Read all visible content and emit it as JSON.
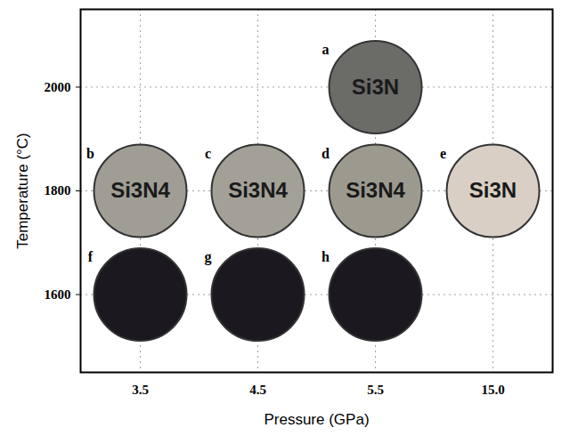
{
  "chart_data": {
    "type": "scatter",
    "x_label": "Pressure (GPa)",
    "y_label": "Temperature (°C)",
    "categories": [
      "3.5",
      "4.5",
      "5.5",
      "15.0"
    ],
    "ylim": [
      1450,
      2150
    ],
    "yticks": [
      1600,
      1800,
      2000
    ],
    "grid": true,
    "points": [
      {
        "label": "a",
        "x": "5.5",
        "y": 2000,
        "color": "#6b6b68",
        "text": "Si3N"
      },
      {
        "label": "b",
        "x": "3.5",
        "y": 1800,
        "color": "#a09e94",
        "text": "Si3N4"
      },
      {
        "label": "c",
        "x": "4.5",
        "y": 1800,
        "color": "#a3a197",
        "text": "Si3N4"
      },
      {
        "label": "d",
        "x": "5.5",
        "y": 1800,
        "color": "#9c9a8e",
        "text": "Si3N4"
      },
      {
        "label": "e",
        "x": "15.0",
        "y": 1800,
        "color": "#d9cfc4",
        "text": "Si3N"
      },
      {
        "label": "f",
        "x": "3.5",
        "y": 1600,
        "color": "#1c1820",
        "text": null
      },
      {
        "label": "g",
        "x": "4.5",
        "y": 1600,
        "color": "#1c1820",
        "text": null
      },
      {
        "label": "h",
        "x": "5.5",
        "y": 1600,
        "color": "#1c1820",
        "text": null
      }
    ]
  }
}
